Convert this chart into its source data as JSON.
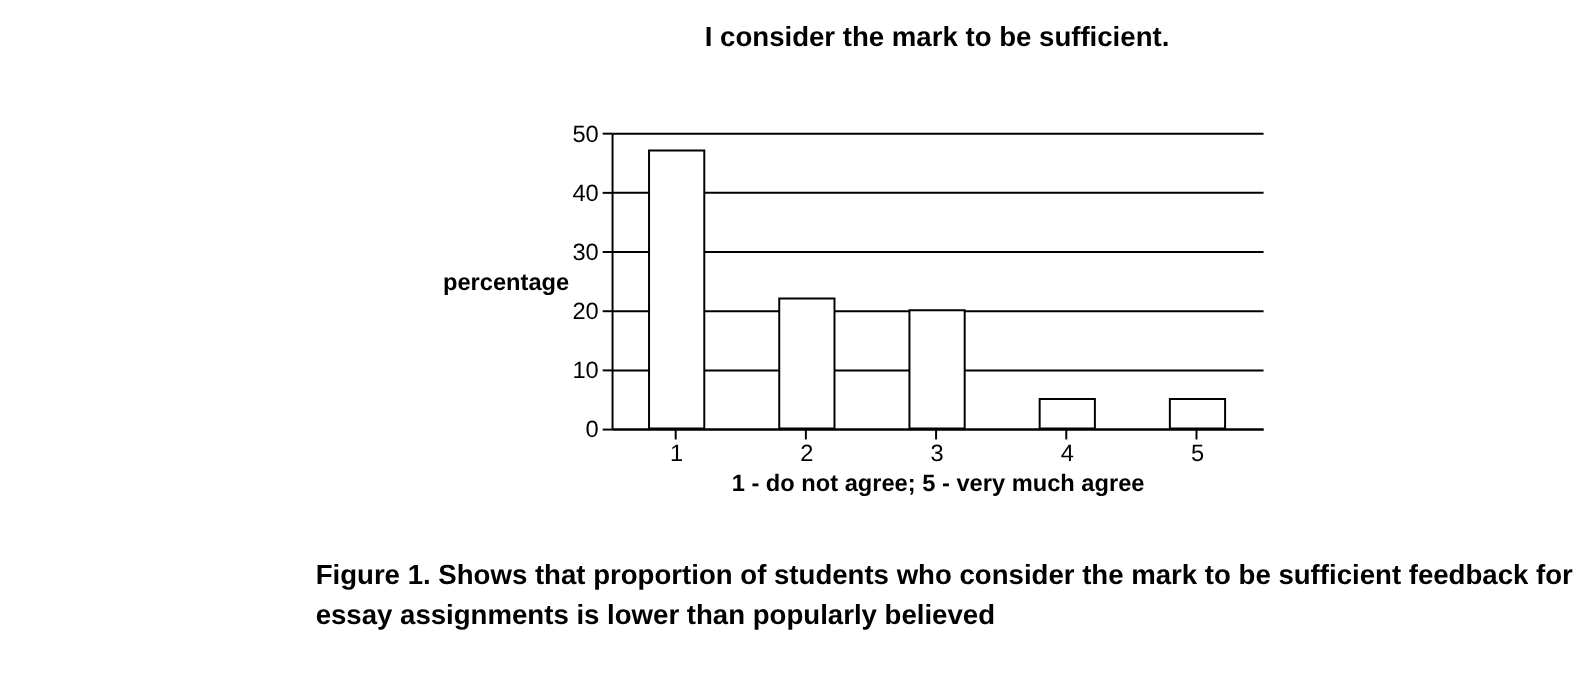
{
  "chart_data": {
    "type": "bar",
    "title": "I consider the mark to be sufficient.",
    "xlabel": "1 - do not agree; 5 - very much agree",
    "ylabel": "percentage",
    "categories": [
      "1",
      "2",
      "3",
      "4",
      "5"
    ],
    "values": [
      47,
      22,
      20,
      5,
      5
    ],
    "color": "#ffffff",
    "ylim": [
      0,
      50
    ],
    "yticks": [
      0,
      10,
      20,
      30,
      40,
      50
    ],
    "grid": "y",
    "annotations": [
      "Figure 1. Shows that proportion of students who consider the mark to be sufficient feedback for essay assignments is lower than popularly believed"
    ]
  }
}
